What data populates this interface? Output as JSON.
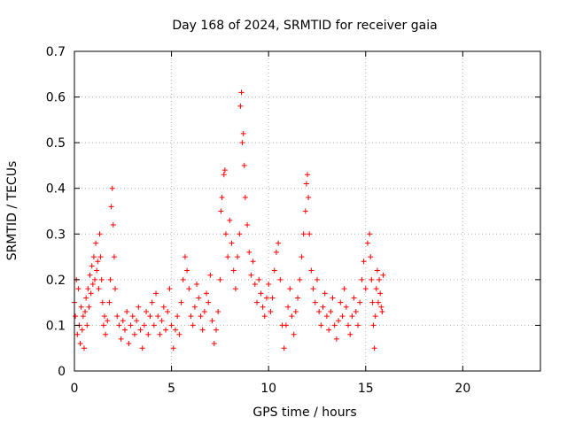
{
  "chart_data": {
    "type": "scatter",
    "title": "Day 168 of 2024, SRMTID for receiver gaia",
    "xlabel": "GPS time / hours",
    "ylabel": "SRMTID / TECUs",
    "xlim": [
      0,
      24
    ],
    "ylim": [
      0,
      0.7
    ],
    "xticks": [
      0,
      5,
      10,
      15,
      20
    ],
    "yticks": [
      0,
      0.1,
      0.2,
      0.3,
      0.4,
      0.5,
      0.6,
      0.7
    ],
    "grid": true,
    "marker": "+",
    "color": "#ff0000",
    "series": [
      {
        "name": "SRMTID",
        "points": [
          [
            0.0,
            0.15
          ],
          [
            0.05,
            0.12
          ],
          [
            0.1,
            0.2
          ],
          [
            0.15,
            0.08
          ],
          [
            0.2,
            0.18
          ],
          [
            0.25,
            0.1
          ],
          [
            0.3,
            0.06
          ],
          [
            0.35,
            0.14
          ],
          [
            0.4,
            0.09
          ],
          [
            0.45,
            0.12
          ],
          [
            0.5,
            0.05
          ],
          [
            0.55,
            0.13
          ],
          [
            0.6,
            0.16
          ],
          [
            0.65,
            0.1
          ],
          [
            0.7,
            0.18
          ],
          [
            0.75,
            0.14
          ],
          [
            0.8,
            0.21
          ],
          [
            0.85,
            0.17
          ],
          [
            0.9,
            0.23
          ],
          [
            0.95,
            0.19
          ],
          [
            1.0,
            0.25
          ],
          [
            1.05,
            0.2
          ],
          [
            1.1,
            0.28
          ],
          [
            1.15,
            0.22
          ],
          [
            1.2,
            0.24
          ],
          [
            1.25,
            0.18
          ],
          [
            1.3,
            0.3
          ],
          [
            1.35,
            0.25
          ],
          [
            1.4,
            0.2
          ],
          [
            1.45,
            0.15
          ],
          [
            1.5,
            0.1
          ],
          [
            1.55,
            0.12
          ],
          [
            1.6,
            0.08
          ],
          [
            1.7,
            0.11
          ],
          [
            1.8,
            0.15
          ],
          [
            1.85,
            0.2
          ],
          [
            1.9,
            0.36
          ],
          [
            1.95,
            0.4
          ],
          [
            2.0,
            0.32
          ],
          [
            2.05,
            0.25
          ],
          [
            2.1,
            0.18
          ],
          [
            2.2,
            0.12
          ],
          [
            2.3,
            0.1
          ],
          [
            2.4,
            0.07
          ],
          [
            2.5,
            0.11
          ],
          [
            2.6,
            0.09
          ],
          [
            2.7,
            0.13
          ],
          [
            2.8,
            0.06
          ],
          [
            2.9,
            0.1
          ],
          [
            3.0,
            0.12
          ],
          [
            3.1,
            0.08
          ],
          [
            3.2,
            0.11
          ],
          [
            3.3,
            0.14
          ],
          [
            3.4,
            0.09
          ],
          [
            3.5,
            0.05
          ],
          [
            3.6,
            0.1
          ],
          [
            3.7,
            0.13
          ],
          [
            3.8,
            0.08
          ],
          [
            3.9,
            0.12
          ],
          [
            4.0,
            0.15
          ],
          [
            4.1,
            0.1
          ],
          [
            4.2,
            0.17
          ],
          [
            4.3,
            0.12
          ],
          [
            4.4,
            0.08
          ],
          [
            4.5,
            0.11
          ],
          [
            4.6,
            0.14
          ],
          [
            4.7,
            0.09
          ],
          [
            4.8,
            0.13
          ],
          [
            4.9,
            0.18
          ],
          [
            5.0,
            0.1
          ],
          [
            5.1,
            0.05
          ],
          [
            5.2,
            0.09
          ],
          [
            5.3,
            0.12
          ],
          [
            5.4,
            0.08
          ],
          [
            5.5,
            0.15
          ],
          [
            5.6,
            0.2
          ],
          [
            5.7,
            0.25
          ],
          [
            5.8,
            0.22
          ],
          [
            5.9,
            0.18
          ],
          [
            6.0,
            0.12
          ],
          [
            6.1,
            0.1
          ],
          [
            6.2,
            0.14
          ],
          [
            6.3,
            0.19
          ],
          [
            6.4,
            0.16
          ],
          [
            6.5,
            0.12
          ],
          [
            6.6,
            0.09
          ],
          [
            6.7,
            0.13
          ],
          [
            6.8,
            0.17
          ],
          [
            6.9,
            0.15
          ],
          [
            7.0,
            0.21
          ],
          [
            7.1,
            0.11
          ],
          [
            7.2,
            0.06
          ],
          [
            7.3,
            0.09
          ],
          [
            7.4,
            0.13
          ],
          [
            7.5,
            0.2
          ],
          [
            7.55,
            0.35
          ],
          [
            7.6,
            0.38
          ],
          [
            7.7,
            0.43
          ],
          [
            7.75,
            0.44
          ],
          [
            7.8,
            0.3
          ],
          [
            7.9,
            0.25
          ],
          [
            8.0,
            0.33
          ],
          [
            8.1,
            0.28
          ],
          [
            8.2,
            0.22
          ],
          [
            8.3,
            0.18
          ],
          [
            8.4,
            0.25
          ],
          [
            8.5,
            0.3
          ],
          [
            8.55,
            0.58
          ],
          [
            8.6,
            0.61
          ],
          [
            8.65,
            0.5
          ],
          [
            8.7,
            0.52
          ],
          [
            8.75,
            0.45
          ],
          [
            8.8,
            0.38
          ],
          [
            8.9,
            0.32
          ],
          [
            9.0,
            0.26
          ],
          [
            9.1,
            0.21
          ],
          [
            9.2,
            0.24
          ],
          [
            9.3,
            0.19
          ],
          [
            9.4,
            0.15
          ],
          [
            9.5,
            0.2
          ],
          [
            9.6,
            0.17
          ],
          [
            9.7,
            0.14
          ],
          [
            9.8,
            0.12
          ],
          [
            9.9,
            0.16
          ],
          [
            10.0,
            0.19
          ],
          [
            10.1,
            0.13
          ],
          [
            10.2,
            0.16
          ],
          [
            10.3,
            0.22
          ],
          [
            10.4,
            0.26
          ],
          [
            10.5,
            0.28
          ],
          [
            10.6,
            0.2
          ],
          [
            10.7,
            0.1
          ],
          [
            10.8,
            0.05
          ],
          [
            10.9,
            0.1
          ],
          [
            11.0,
            0.14
          ],
          [
            11.1,
            0.18
          ],
          [
            11.2,
            0.12
          ],
          [
            11.3,
            0.08
          ],
          [
            11.4,
            0.13
          ],
          [
            11.5,
            0.16
          ],
          [
            11.6,
            0.2
          ],
          [
            11.7,
            0.25
          ],
          [
            11.8,
            0.3
          ],
          [
            11.9,
            0.35
          ],
          [
            11.95,
            0.41
          ],
          [
            12.0,
            0.43
          ],
          [
            12.05,
            0.38
          ],
          [
            12.1,
            0.3
          ],
          [
            12.2,
            0.22
          ],
          [
            12.3,
            0.18
          ],
          [
            12.4,
            0.15
          ],
          [
            12.5,
            0.2
          ],
          [
            12.6,
            0.13
          ],
          [
            12.7,
            0.1
          ],
          [
            12.8,
            0.14
          ],
          [
            12.9,
            0.17
          ],
          [
            13.0,
            0.12
          ],
          [
            13.1,
            0.09
          ],
          [
            13.2,
            0.13
          ],
          [
            13.3,
            0.16
          ],
          [
            13.4,
            0.1
          ],
          [
            13.5,
            0.07
          ],
          [
            13.6,
            0.11
          ],
          [
            13.7,
            0.15
          ],
          [
            13.8,
            0.12
          ],
          [
            13.9,
            0.18
          ],
          [
            14.0,
            0.14
          ],
          [
            14.1,
            0.1
          ],
          [
            14.2,
            0.08
          ],
          [
            14.3,
            0.12
          ],
          [
            14.4,
            0.16
          ],
          [
            14.5,
            0.13
          ],
          [
            14.6,
            0.1
          ],
          [
            14.7,
            0.15
          ],
          [
            14.8,
            0.2
          ],
          [
            14.9,
            0.24
          ],
          [
            15.0,
            0.18
          ],
          [
            15.1,
            0.28
          ],
          [
            15.2,
            0.3
          ],
          [
            15.25,
            0.25
          ],
          [
            15.3,
            0.2
          ],
          [
            15.35,
            0.15
          ],
          [
            15.4,
            0.1
          ],
          [
            15.45,
            0.05
          ],
          [
            15.5,
            0.12
          ],
          [
            15.55,
            0.18
          ],
          [
            15.6,
            0.22
          ],
          [
            15.65,
            0.15
          ],
          [
            15.7,
            0.2
          ],
          [
            15.75,
            0.17
          ],
          [
            15.8,
            0.14
          ],
          [
            15.85,
            0.13
          ],
          [
            15.9,
            0.21
          ]
        ]
      }
    ]
  }
}
